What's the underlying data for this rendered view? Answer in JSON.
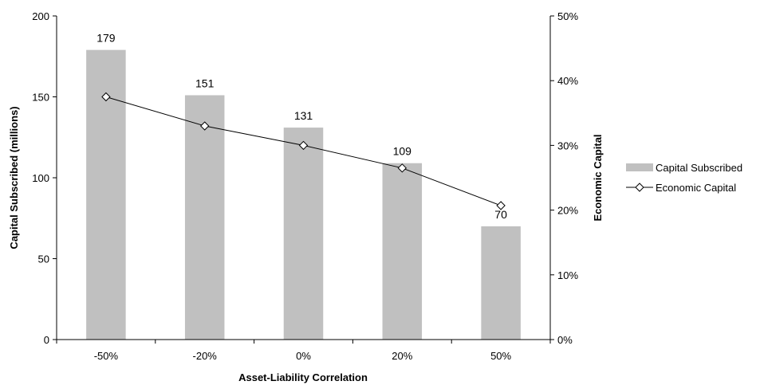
{
  "chart_data": {
    "type": "bar",
    "categories": [
      "-50%",
      "-20%",
      "0%",
      "20%",
      "50%"
    ],
    "series": [
      {
        "name": "Capital Subscribed",
        "type": "bar",
        "axis": "left",
        "values": [
          179,
          151,
          131,
          109,
          70
        ],
        "data_labels": [
          "179",
          "151",
          "131",
          "109",
          "70"
        ],
        "color": "#c0c0c0"
      },
      {
        "name": "Economic Capital",
        "type": "line",
        "axis": "right",
        "marker": "diamond",
        "values": [
          37.5,
          33.0,
          30.0,
          26.5,
          20.7
        ],
        "color": "#000000"
      }
    ],
    "xlabel": "Asset-Liability Correlation",
    "ylabel": "Capital Subscribed (millions)",
    "y2label": "Economic Capital",
    "ylim": [
      0,
      200
    ],
    "yticks": [
      "0",
      "50",
      "100",
      "150",
      "200"
    ],
    "y2lim": [
      0,
      50
    ],
    "y2ticks": [
      "0%",
      "10%",
      "20%",
      "30%",
      "40%",
      "50%"
    ],
    "grid": false,
    "legend": "right"
  }
}
